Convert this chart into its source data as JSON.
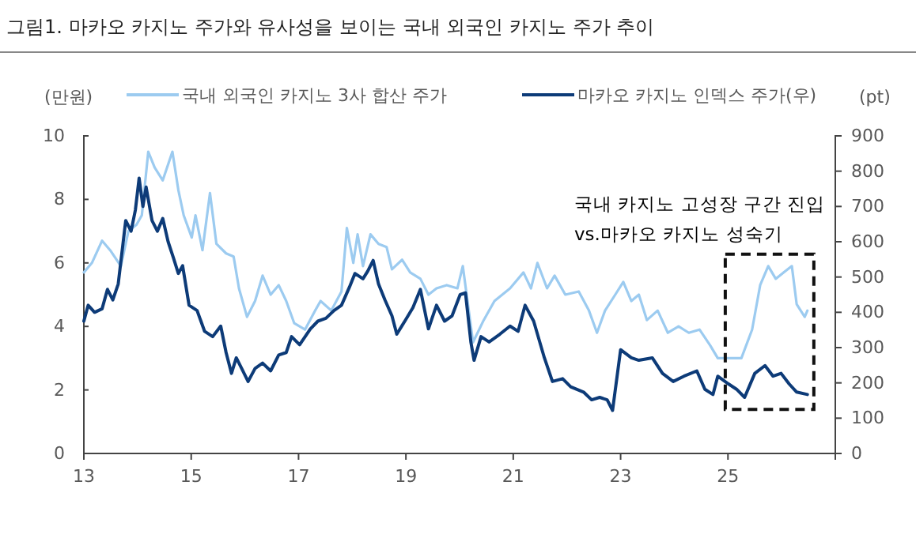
{
  "chart_data": {
    "type": "line",
    "title": "그림1.  마카오 카지노 주가와 유사성을 보이는 국내 외국인 카지노 주가 추이",
    "ylabel": "(만원)",
    "y2label": "(pt)",
    "annotations": [
      "국내 카지노 고성장 구간 진입\nvs.마카오 카지노 성숙기"
    ],
    "xlim": [
      2013,
      2027
    ],
    "xticks": [
      {
        "value": 2013,
        "label": "13"
      },
      {
        "value": 2015,
        "label": "15"
      },
      {
        "value": 2017,
        "label": "17"
      },
      {
        "value": 2019,
        "label": "19"
      },
      {
        "value": 2021,
        "label": "21"
      },
      {
        "value": 2023,
        "label": "23"
      },
      {
        "value": 2025,
        "label": "25"
      }
    ],
    "ylim": [
      0,
      10
    ],
    "yticks": [
      0,
      2,
      4,
      6,
      8,
      10
    ],
    "y2lim": [
      0,
      900
    ],
    "y2ticks": [
      0,
      100,
      200,
      300,
      400,
      500,
      600,
      700,
      800,
      900
    ],
    "grid": false,
    "legend": "top",
    "line_style": "solid",
    "marker": "none",
    "series": [
      {
        "name": "국내 외국인 카지노 3사 합산 주가",
        "color": "#9ccbf0",
        "x": [
          2013.0,
          2013.15,
          2013.34,
          2013.49,
          2013.69,
          2013.83,
          2013.98,
          2014.08,
          2014.2,
          2014.32,
          2014.47,
          2014.65,
          2014.76,
          2014.86,
          2015.01,
          2015.08,
          2015.21,
          2015.35,
          2015.47,
          2015.65,
          2015.79,
          2015.89,
          2016.04,
          2016.19,
          2016.33,
          2016.48,
          2016.63,
          2016.77,
          2016.92,
          2017.12,
          2017.31,
          2017.41,
          2017.61,
          2017.8,
          2017.9,
          2018.02,
          2018.1,
          2018.2,
          2018.34,
          2018.49,
          2018.64,
          2018.74,
          2018.93,
          2019.08,
          2019.27,
          2019.42,
          2019.57,
          2019.76,
          2019.96,
          2020.06,
          2020.25,
          2020.45,
          2020.65,
          2020.94,
          2021.19,
          2021.33,
          2021.45,
          2021.63,
          2021.77,
          2021.97,
          2022.22,
          2022.41,
          2022.56,
          2022.71,
          2022.9,
          2023.05,
          2023.2,
          2023.34,
          2023.49,
          2023.69,
          2023.88,
          2024.08,
          2024.27,
          2024.47,
          2024.67,
          2024.81,
          2025.01,
          2025.25,
          2025.45,
          2025.6,
          2025.75,
          2025.89,
          2026.04,
          2026.19,
          2026.28,
          2026.43,
          2026.48
        ],
        "values": [
          5.7,
          6.0,
          6.7,
          6.4,
          5.9,
          7.0,
          7.2,
          7.5,
          9.5,
          9.0,
          8.6,
          9.5,
          8.3,
          7.5,
          6.8,
          7.5,
          6.4,
          8.2,
          6.6,
          6.3,
          6.2,
          5.2,
          4.3,
          4.8,
          5.6,
          5.0,
          5.3,
          4.8,
          4.1,
          3.9,
          4.5,
          4.8,
          4.5,
          5.1,
          7.1,
          6.0,
          6.9,
          5.9,
          6.9,
          6.6,
          6.5,
          5.8,
          6.1,
          5.7,
          5.5,
          5.0,
          5.2,
          5.3,
          5.2,
          5.9,
          3.5,
          4.2,
          4.8,
          5.2,
          5.7,
          5.2,
          6.0,
          5.2,
          5.6,
          5.0,
          5.1,
          4.5,
          3.8,
          4.5,
          5.0,
          5.4,
          4.8,
          5.0,
          4.2,
          4.5,
          3.8,
          4.0,
          3.8,
          3.9,
          3.4,
          3.0,
          3.0,
          3.0,
          3.9,
          5.3,
          5.9,
          5.5,
          5.7,
          5.9,
          4.7,
          4.3,
          4.5
        ]
      },
      {
        "name": "마카오 카지노 인덱스 주가(우)",
        "color": "#0d3b78",
        "axis": "y2",
        "x": [
          2013.0,
          2013.08,
          2013.2,
          2013.34,
          2013.44,
          2013.54,
          2013.64,
          2013.78,
          2013.88,
          2013.96,
          2014.03,
          2014.1,
          2014.16,
          2014.27,
          2014.37,
          2014.47,
          2014.57,
          2014.67,
          2014.76,
          2014.84,
          2014.96,
          2015.11,
          2015.25,
          2015.4,
          2015.55,
          2015.65,
          2015.75,
          2015.84,
          2015.94,
          2016.06,
          2016.19,
          2016.33,
          2016.48,
          2016.63,
          2016.77,
          2016.87,
          2017.02,
          2017.22,
          2017.36,
          2017.51,
          2017.66,
          2017.8,
          2017.95,
          2018.05,
          2018.2,
          2018.29,
          2018.39,
          2018.49,
          2018.61,
          2018.74,
          2018.83,
          2018.98,
          2019.13,
          2019.27,
          2019.42,
          2019.57,
          2019.72,
          2019.86,
          2020.01,
          2020.11,
          2020.21,
          2020.27,
          2020.4,
          2020.55,
          2020.75,
          2020.94,
          2021.09,
          2021.22,
          2021.38,
          2021.58,
          2021.73,
          2021.92,
          2022.07,
          2022.31,
          2022.46,
          2022.61,
          2022.75,
          2022.85,
          2023.0,
          2023.2,
          2023.34,
          2023.59,
          2023.78,
          2023.98,
          2024.18,
          2024.42,
          2024.57,
          2024.72,
          2024.81,
          2025.01,
          2025.16,
          2025.31,
          2025.5,
          2025.69,
          2025.84,
          2025.99,
          2026.14,
          2026.28,
          2026.48
        ],
        "values": [
          375,
          420,
          400,
          410,
          465,
          435,
          480,
          660,
          630,
          690,
          780,
          700,
          755,
          660,
          630,
          666,
          600,
          554,
          510,
          532,
          420,
          405,
          346,
          331,
          361,
          286,
          227,
          271,
          241,
          204,
          241,
          256,
          234,
          279,
          286,
          331,
          308,
          353,
          375,
          383,
          405,
          420,
          472,
          510,
          495,
          517,
          547,
          480,
          435,
          390,
          338,
          375,
          413,
          465,
          353,
          420,
          375,
          390,
          450,
          455,
          316,
          264,
          331,
          316,
          338,
          361,
          346,
          420,
          375,
          271,
          204,
          212,
          189,
          174,
          152,
          159,
          152,
          122,
          294,
          271,
          264,
          271,
          227,
          204,
          219,
          234,
          182,
          167,
          219,
          197,
          182,
          159,
          227,
          249,
          219,
          227,
          197,
          174,
          167
        ]
      }
    ]
  }
}
